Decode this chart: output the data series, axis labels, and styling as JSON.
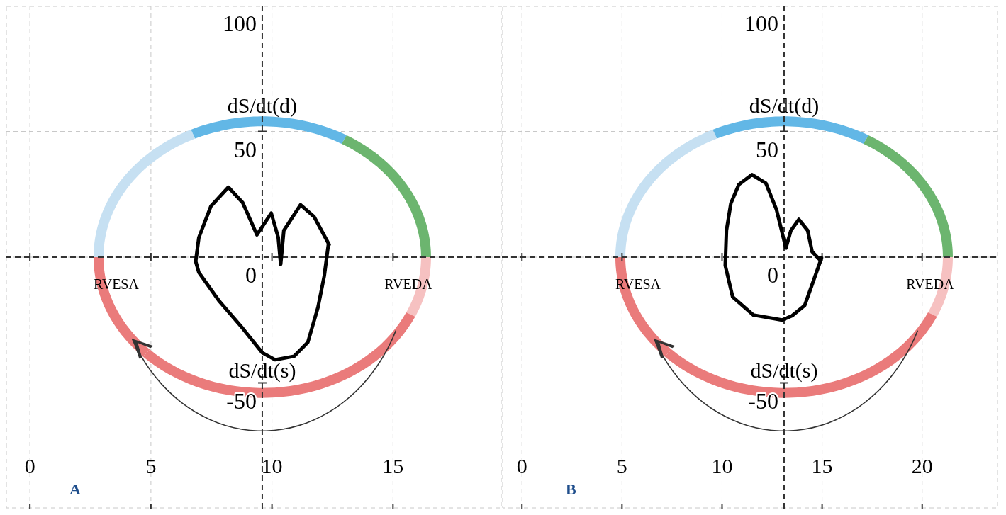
{
  "chart_data": [
    {
      "type": "line",
      "title": "A",
      "xlim": [
        -1,
        19.5
      ],
      "ylim": [
        -100,
        100
      ],
      "xticks": [
        0,
        5,
        10,
        15
      ],
      "yticks": [
        -50,
        0,
        50,
        100
      ],
      "grid": true,
      "marker": "none",
      "line_style": "solid",
      "ref_lines": [
        {
          "axis": "x",
          "value": 9.6,
          "label": null,
          "line_style": "dashed"
        },
        {
          "axis": "y",
          "value": 0,
          "label": null,
          "line_style": "dashed"
        }
      ],
      "annotations": [
        "dS/dt(d)",
        "dS/dt(s)",
        "RVESA",
        "RVEDA"
      ],
      "series": [
        {
          "color": "#000000",
          "x": [
            12.33,
            12.16,
            11.9,
            11.48,
            10.92,
            10.13,
            9.6,
            8.79,
            7.8,
            6.98,
            6.85,
            6.98,
            7.48,
            8.2,
            8.79,
            9.38,
            9.97,
            10.26,
            10.36,
            10.49,
            11.18,
            11.74,
            12.36
          ],
          "values": [
            5,
            -7.5,
            -20,
            -33.9,
            -39.4,
            -40.8,
            -38,
            -28.3,
            -17.2,
            -6.1,
            -1.7,
            7.8,
            20.3,
            27.8,
            21.7,
            8.9,
            17.5,
            7.8,
            -2.8,
            10.6,
            20.8,
            16.1,
            5
          ]
        }
      ]
    },
    {
      "type": "line",
      "title": "B",
      "xlim": [
        -1,
        23.8
      ],
      "ylim": [
        -100,
        100
      ],
      "xticks": [
        0,
        5,
        10,
        15,
        20
      ],
      "yticks": [
        -50,
        0,
        50,
        100
      ],
      "grid": true,
      "marker": "none",
      "line_style": "solid",
      "ref_lines": [
        {
          "axis": "x",
          "value": 13.1,
          "label": null,
          "line_style": "dashed"
        },
        {
          "axis": "y",
          "value": 0,
          "label": null,
          "line_style": "dashed"
        }
      ],
      "annotations": [
        "dS/dt(d)",
        "dS/dt(s)",
        "RVESA",
        "RVEDA"
      ],
      "series": [
        {
          "color": "#000000",
          "x": [
            14.97,
            14.59,
            14.13,
            13.5,
            13.0,
            11.56,
            10.53,
            10.16,
            10.22,
            10.44,
            10.84,
            11.5,
            12.19,
            12.72,
            13.19,
            13.44,
            13.84,
            14.28,
            14.5,
            14.9
          ],
          "values": [
            -0.3,
            -8.9,
            -19.2,
            -23.3,
            -25,
            -23,
            -15.8,
            -3.3,
            10.6,
            21.4,
            28.9,
            32.8,
            29.4,
            18.9,
            3.6,
            10.6,
            15,
            10.6,
            2.2,
            -1.1
          ]
        }
      ]
    }
  ]
}
